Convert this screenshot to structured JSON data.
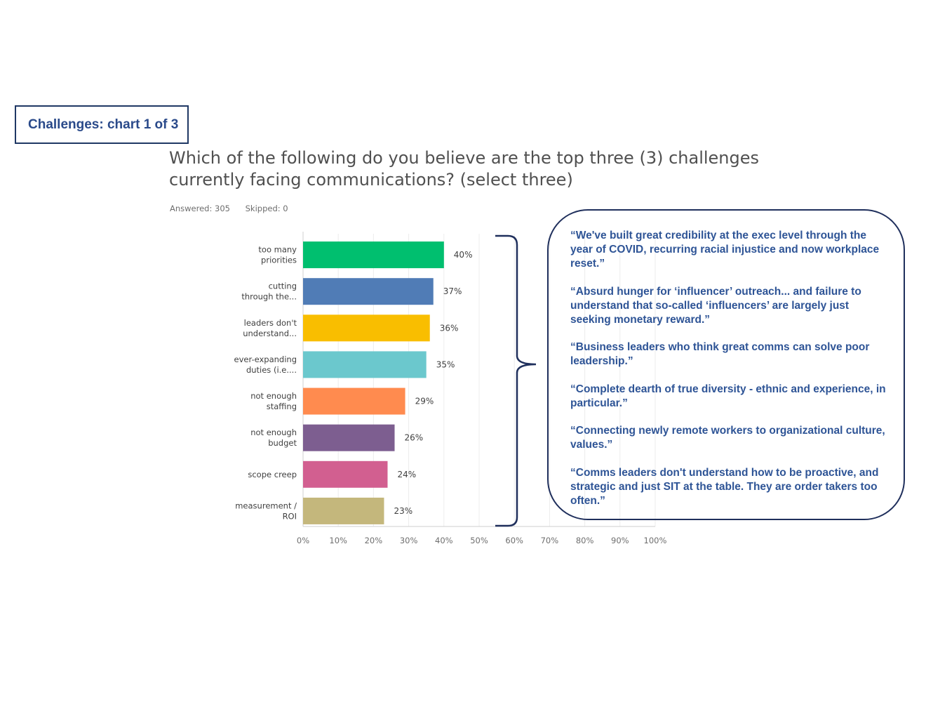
{
  "slide_label": "Challenges: chart 1 of 3",
  "question": "Which of the following do you believe are the top three (3) challenges currently facing communications? (select three)",
  "answered": "Answered: 305",
  "skipped": "Skipped: 0",
  "colors": {
    "label_border": "#1f3864",
    "quote_text": "#2e5496",
    "bracket": "#1f2f5c"
  },
  "chart_data": {
    "type": "bar",
    "orientation": "horizontal",
    "categories": [
      [
        "too many",
        "priorities"
      ],
      [
        "cutting",
        "through the..."
      ],
      [
        "leaders don't",
        "understand..."
      ],
      [
        "ever-expanding",
        "duties (i.e...."
      ],
      [
        "not enough",
        "staffing"
      ],
      [
        "not enough",
        "budget"
      ],
      [
        "scope creep"
      ],
      [
        "measurement /",
        "ROI"
      ]
    ],
    "values": [
      40,
      37,
      36,
      35,
      29,
      26,
      24,
      23
    ],
    "value_labels": [
      "40%",
      "37%",
      "36%",
      "35%",
      "29%",
      "26%",
      "24%",
      "23%"
    ],
    "colors": [
      "#00bf6f",
      "#507cb6",
      "#f9be00",
      "#6bc8cd",
      "#ff8b4f",
      "#7d5e90",
      "#d25f90",
      "#c4b77c"
    ],
    "xlim": [
      0,
      100
    ],
    "xticks": [
      "0%",
      "10%",
      "20%",
      "30%",
      "40%",
      "50%",
      "60%",
      "70%",
      "80%",
      "90%",
      "100%"
    ],
    "grid": true
  },
  "quotes": [
    "“We've built great credibility at the exec level through the year of COVID, recurring racial injustice and now workplace reset.”",
    "“Absurd hunger for ‘influencer’ outreach...  and failure to understand that so-called ‘influencers’ are largely just seeking monetary reward.”",
    "“Business leaders who think great comms can solve poor leadership.”",
    "“Complete dearth of true diversity - ethnic and experience, in particular.”",
    "“Connecting newly remote workers to organizational culture, values.”",
    "“Comms leaders don't understand how to be proactive, and strategic and just SIT at the table. They are order takers too often.”"
  ]
}
